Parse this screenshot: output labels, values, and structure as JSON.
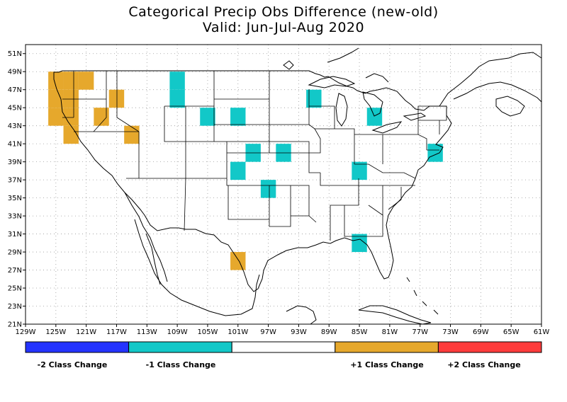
{
  "title": {
    "line1": "Categorical Precip Obs Difference (new-old)",
    "line2": "Valid: Jun-Jul-Aug 2020"
  },
  "map": {
    "lon_range": [
      -129,
      -61
    ],
    "lat_range": [
      21,
      52
    ],
    "lon_ticks": [
      "129W",
      "125W",
      "121W",
      "117W",
      "113W",
      "109W",
      "105W",
      "101W",
      "97W",
      "93W",
      "89W",
      "85W",
      "81W",
      "77W",
      "73W",
      "69W",
      "65W",
      "61W"
    ],
    "lat_ticks": [
      "51N",
      "49N",
      "47N",
      "45N",
      "43N",
      "41N",
      "39N",
      "37N",
      "35N",
      "33N",
      "31N",
      "29N",
      "27N",
      "25N",
      "23N",
      "21N"
    ],
    "cell_size_deg": 2,
    "cells": [
      {
        "lon": -125,
        "lat": 48,
        "class": 1
      },
      {
        "lon": -123,
        "lat": 48,
        "class": 1
      },
      {
        "lon": -121,
        "lat": 48,
        "class": 1
      },
      {
        "lon": -125,
        "lat": 46,
        "class": 1
      },
      {
        "lon": -123,
        "lat": 46,
        "class": 1
      },
      {
        "lon": -125,
        "lat": 44,
        "class": 1
      },
      {
        "lon": -123,
        "lat": 44,
        "class": 1
      },
      {
        "lon": -123,
        "lat": 42,
        "class": 1
      },
      {
        "lon": -117,
        "lat": 46,
        "class": 1
      },
      {
        "lon": -119,
        "lat": 44,
        "class": 1
      },
      {
        "lon": -115,
        "lat": 42,
        "class": 1
      },
      {
        "lon": -101,
        "lat": 28,
        "class": 1
      },
      {
        "lon": -109,
        "lat": 48,
        "class": -1
      },
      {
        "lon": -109,
        "lat": 46,
        "class": -1
      },
      {
        "lon": -105,
        "lat": 44,
        "class": -1
      },
      {
        "lon": -101,
        "lat": 44,
        "class": -1
      },
      {
        "lon": -91,
        "lat": 46,
        "class": -1
      },
      {
        "lon": -99,
        "lat": 40,
        "class": -1
      },
      {
        "lon": -95,
        "lat": 40,
        "class": -1
      },
      {
        "lon": -101,
        "lat": 38,
        "class": -1
      },
      {
        "lon": -97,
        "lat": 36,
        "class": -1
      },
      {
        "lon": -85,
        "lat": 38,
        "class": -1
      },
      {
        "lon": -83,
        "lat": 44,
        "class": -1
      },
      {
        "lon": -75,
        "lat": 40,
        "class": -1
      },
      {
        "lon": -85,
        "lat": 30,
        "class": -1
      }
    ]
  },
  "legend": {
    "items": [
      {
        "label": "-2 Class Change",
        "color": "#2433ff"
      },
      {
        "label": "-1 Class Change",
        "color": "#12c8c8"
      },
      {
        "label": "",
        "color": "#ffffff"
      },
      {
        "label": "+1 Class Change",
        "color": "#e6a82c"
      },
      {
        "label": "+2 Class Change",
        "color": "#ff3b3b"
      }
    ]
  }
}
